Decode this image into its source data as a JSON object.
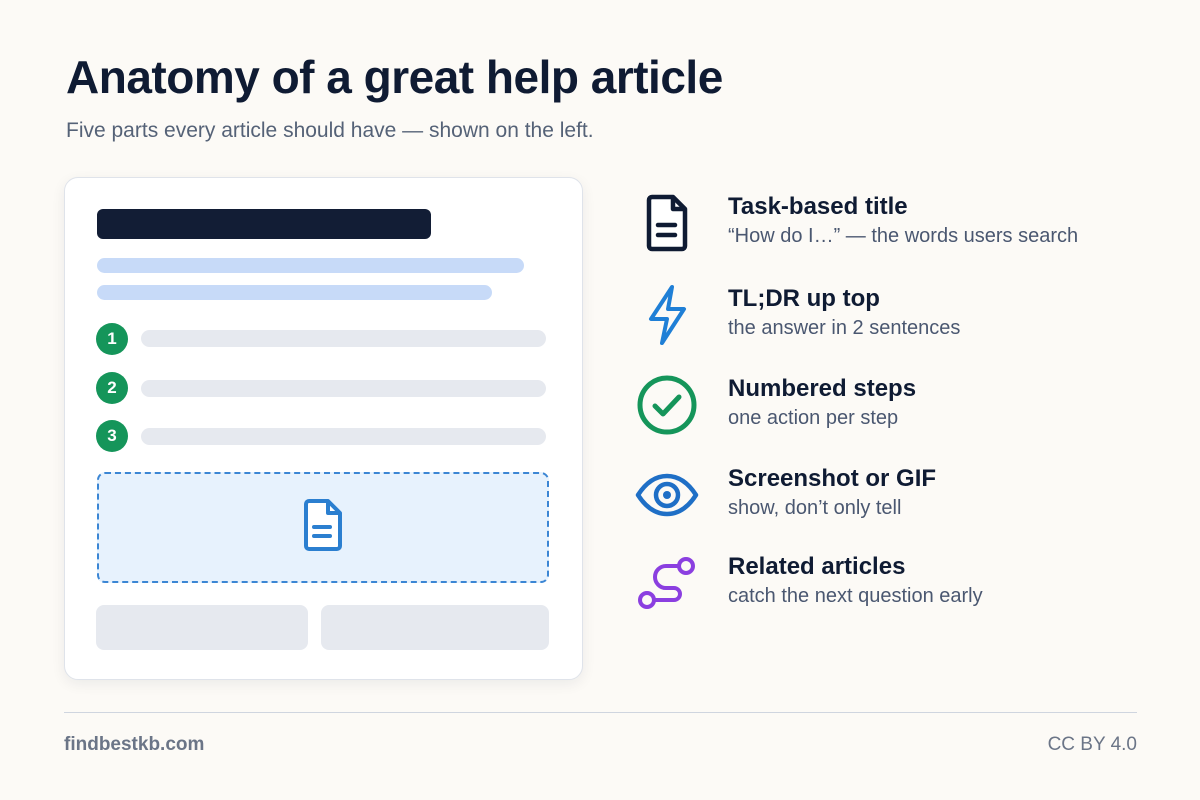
{
  "header": {
    "title": "Anatomy of a great help article",
    "subtitle": "Five parts every article should have — shown on the left."
  },
  "mock_article": {
    "step_numbers": [
      "1",
      "2",
      "3"
    ],
    "screenshot_icon": "document-icon"
  },
  "parts": [
    {
      "title": "Task-based title",
      "desc": "“How do I…” — the words users search",
      "icon": "document-icon",
      "color": "#0f1b33"
    },
    {
      "title": "TL;DR up top",
      "desc": "the answer in 2 sentences",
      "icon": "lightning-icon",
      "color": "#1f7fd6"
    },
    {
      "title": "Numbered steps",
      "desc": "one action per step",
      "icon": "check-circle-icon",
      "color": "#15955a"
    },
    {
      "title": "Screenshot or GIF",
      "desc": "show, don’t only tell",
      "icon": "eye-icon",
      "color": "#1f6fc6"
    },
    {
      "title": "Related articles",
      "desc": "catch the next question early",
      "icon": "route-link-icon",
      "color": "#8b3fe0"
    }
  ],
  "footer": {
    "site": "findbestkb.com",
    "license": "CC BY 4.0"
  },
  "colors": {
    "background": "#fcfaf6",
    "ink": "#0f1b33",
    "tldr_blue": "#c7daf8",
    "step_green": "#15955a",
    "screenshot_blue": "#3b86d4",
    "related_purple": "#8b3fe0"
  }
}
